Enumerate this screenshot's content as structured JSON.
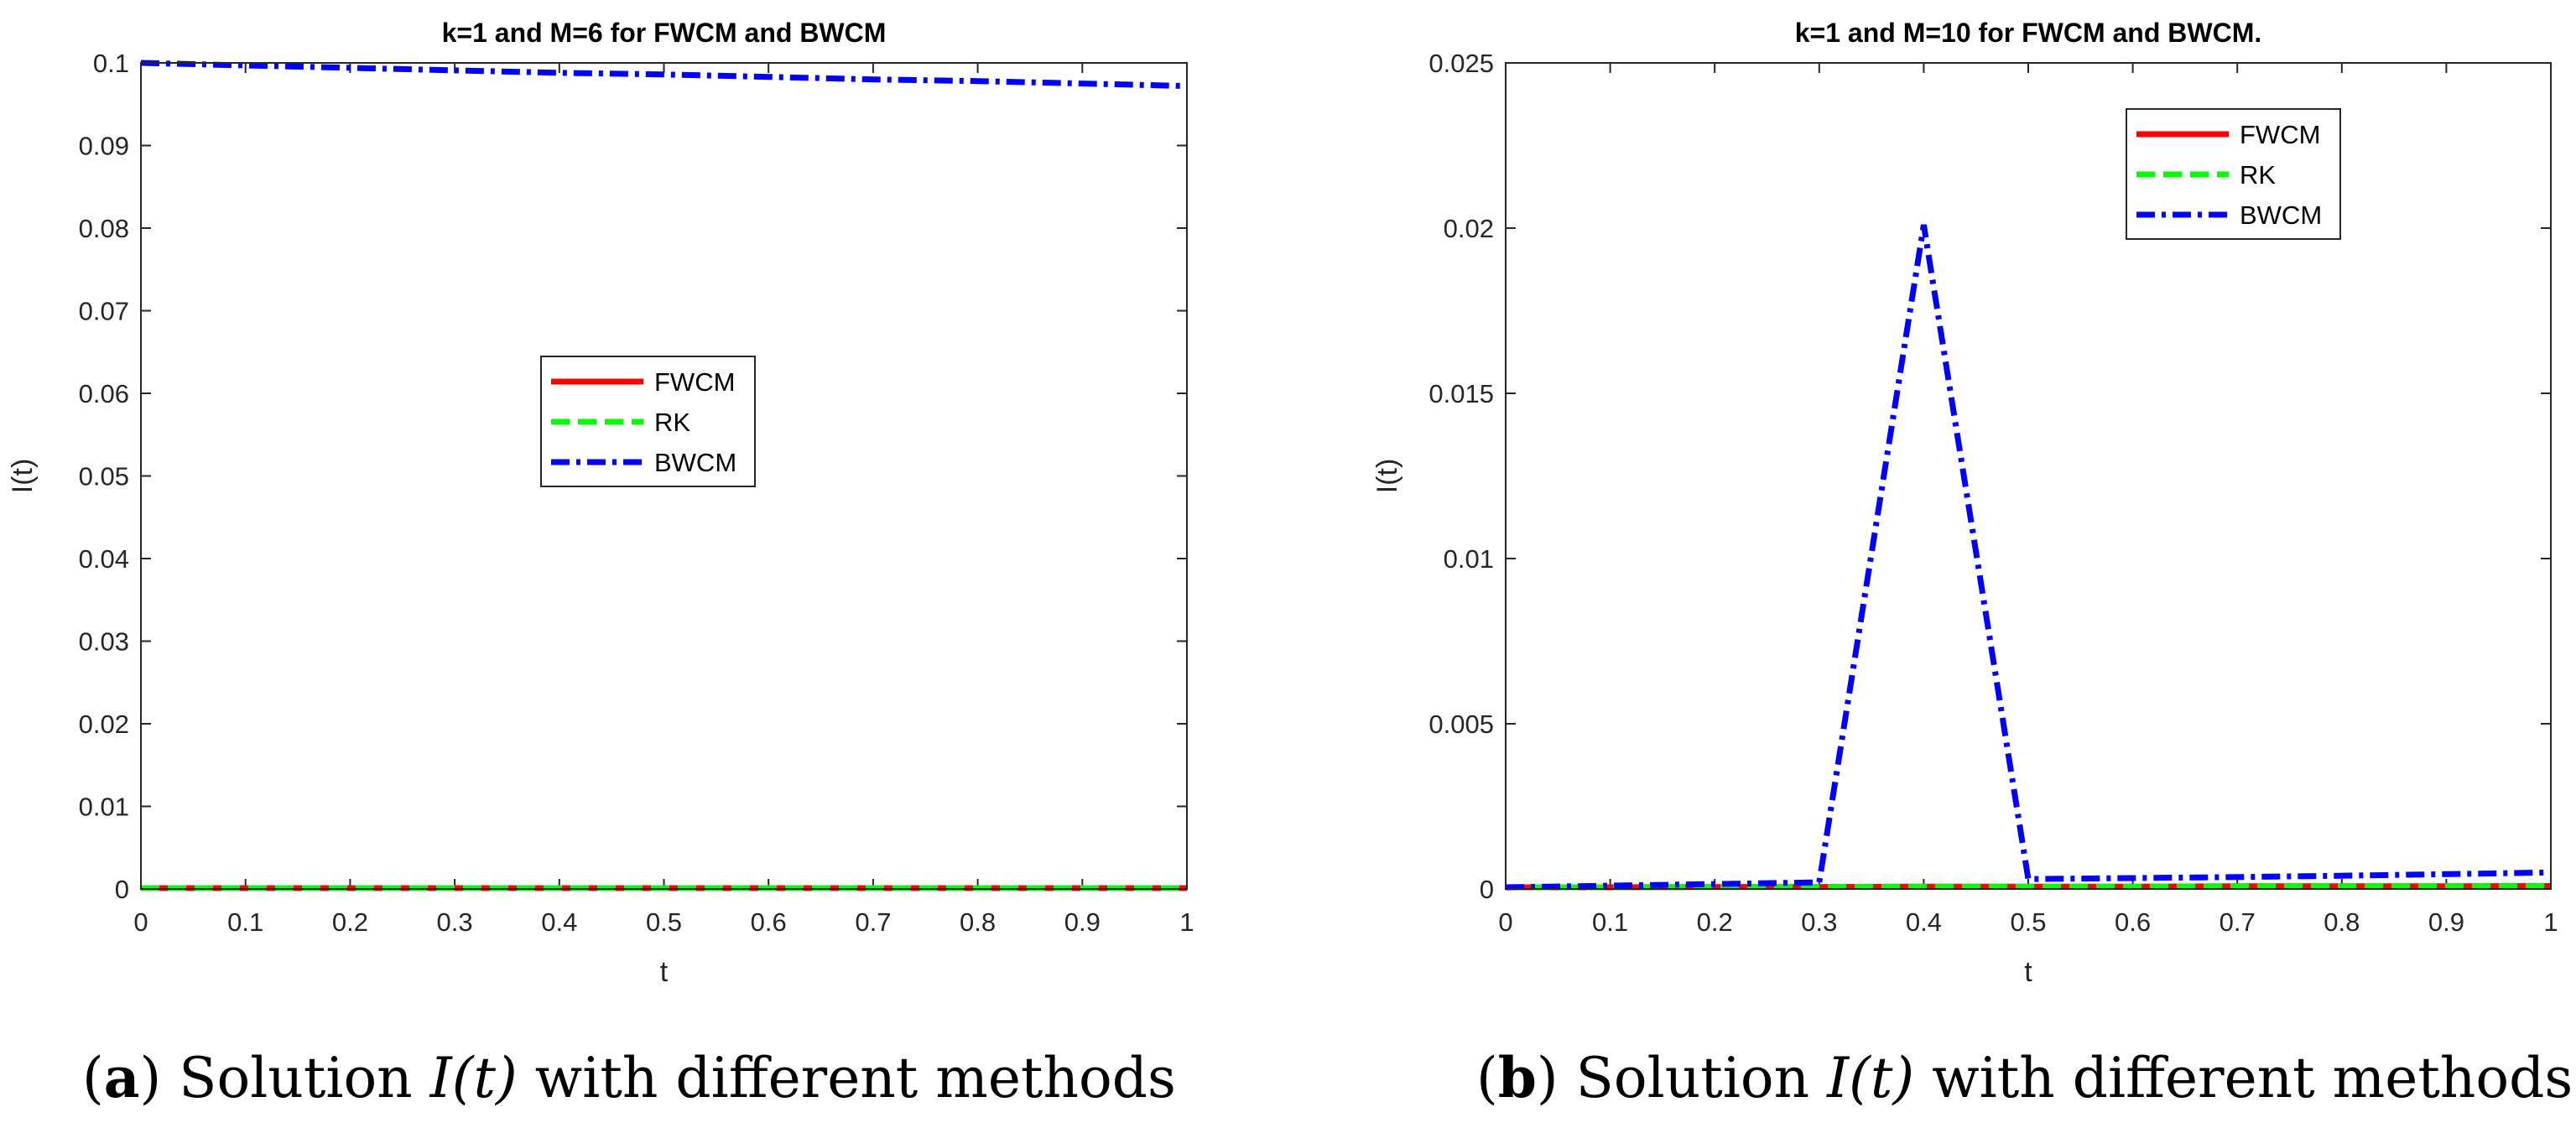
{
  "chart_data": [
    {
      "type": "line",
      "title": "k=1 and M=6 for FWCM and BWCM",
      "xlabel": "t",
      "ylabel": "I(t)",
      "xlim": [
        0,
        1
      ],
      "ylim": [
        0,
        0.1
      ],
      "xticks": [
        "0",
        "0.1",
        "0.2",
        "0.3",
        "0.4",
        "0.5",
        "0.6",
        "0.7",
        "0.8",
        "0.9",
        "1"
      ],
      "yticks": [
        "0",
        "0.01",
        "0.02",
        "0.03",
        "0.04",
        "0.05",
        "0.06",
        "0.07",
        "0.08",
        "0.09",
        "0.1"
      ],
      "legend_position": "center",
      "series": [
        {
          "name": "FWCM",
          "style": "solid",
          "color": "#ff0000",
          "x": [
            0,
            0.1,
            0.2,
            0.3,
            0.4,
            0.5,
            0.6,
            0.7,
            0.8,
            0.9,
            1.0
          ],
          "values": [
            0.0001,
            0.0001,
            0.0001,
            0.0001,
            0.0001,
            0.0001,
            0.0001,
            0.0001,
            0.0001,
            0.0001,
            0.0001
          ]
        },
        {
          "name": "RK",
          "style": "dashed",
          "color": "#00ff00",
          "x": [
            0,
            0.1,
            0.2,
            0.3,
            0.4,
            0.5,
            0.6,
            0.7,
            0.8,
            0.9,
            1.0
          ],
          "values": [
            0.0001,
            0.0001,
            0.0001,
            0.0001,
            0.0001,
            0.0001,
            0.0001,
            0.0001,
            0.0001,
            0.0001,
            0.0001
          ]
        },
        {
          "name": "BWCM",
          "style": "dashdot",
          "color": "#0000ff",
          "x": [
            0,
            0.1,
            0.2,
            0.3,
            0.4,
            0.5,
            0.6,
            0.7,
            0.8,
            0.9,
            1.0
          ],
          "values": [
            0.1,
            0.0997,
            0.0994,
            0.0991,
            0.0988,
            0.0986,
            0.0983,
            0.098,
            0.0978,
            0.0975,
            0.0972
          ]
        }
      ]
    },
    {
      "type": "line",
      "title": "k=1 and M=10 for FWCM and BWCM.",
      "xlabel": "t",
      "ylabel": "I(t)",
      "xlim": [
        0,
        1
      ],
      "ylim": [
        0,
        0.025
      ],
      "xticks": [
        "0",
        "0.1",
        "0.2",
        "0.3",
        "0.4",
        "0.5",
        "0.6",
        "0.7",
        "0.8",
        "0.9",
        "1"
      ],
      "yticks": [
        "0",
        "0.005",
        "0.01",
        "0.015",
        "0.02",
        "0.025"
      ],
      "legend_position": "top-right",
      "series": [
        {
          "name": "FWCM",
          "style": "solid",
          "color": "#ff0000",
          "x": [
            0,
            0.1,
            0.2,
            0.3,
            0.4,
            0.5,
            0.6,
            0.7,
            0.8,
            0.9,
            1.0
          ],
          "values": [
            5e-05,
            5e-05,
            6e-05,
            6e-05,
            7e-05,
            7e-05,
            7e-05,
            8e-05,
            8e-05,
            8e-05,
            9e-05
          ]
        },
        {
          "name": "RK",
          "style": "dashed",
          "color": "#00ff00",
          "x": [
            0,
            0.1,
            0.2,
            0.3,
            0.4,
            0.5,
            0.6,
            0.7,
            0.8,
            0.9,
            1.0
          ],
          "values": [
            5e-05,
            5e-05,
            6e-05,
            6e-05,
            7e-05,
            7e-05,
            7e-05,
            8e-05,
            8e-05,
            8e-05,
            9e-05
          ]
        },
        {
          "name": "BWCM",
          "style": "dashdot",
          "color": "#0000ff",
          "x": [
            0,
            0.1,
            0.2,
            0.3,
            0.4,
            0.5,
            0.6,
            0.7,
            0.8,
            0.9,
            1.0
          ],
          "values": [
            5e-05,
            0.0001,
            0.00015,
            0.0002,
            0.0201,
            0.0003,
            0.00033,
            0.00036,
            0.0004,
            0.00045,
            0.0005
          ]
        }
      ]
    }
  ],
  "captions": [
    {
      "label": "(a)",
      "text_before": "Solution",
      "math": "I(t)",
      "text_after": "with different methods"
    },
    {
      "label": "(b)",
      "text_before": "Solution",
      "math": "I(t)",
      "text_after": "with different methods"
    }
  ]
}
